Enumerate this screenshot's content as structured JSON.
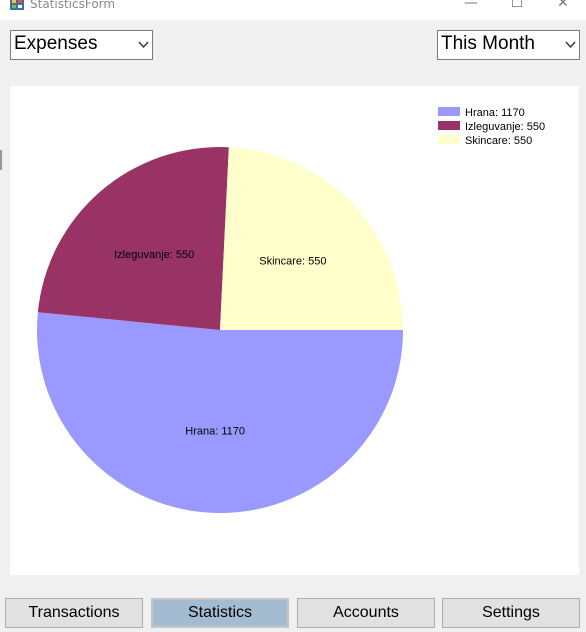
{
  "window": {
    "title": "StatisticsForm",
    "minimize_glyph": "—",
    "maximize_glyph": "☐",
    "close_glyph": "✕"
  },
  "filters": {
    "type_value": "Expenses",
    "period_value": "This Month"
  },
  "chart_data": {
    "type": "pie",
    "categories": [
      "Hrana",
      "Izleguvanje",
      "Skincare"
    ],
    "values": [
      1170,
      550,
      550
    ],
    "data_labels": [
      "Hrana: 1170",
      "Izleguvanje: 550",
      "Skincare: 550"
    ],
    "legend_entries": [
      "Hrana: 1170",
      "Izleguvanje: 550",
      "Skincare: 550"
    ],
    "colors": [
      "#9999ff",
      "#993366",
      "#ffffcc"
    ],
    "legend_position": "top-right",
    "start_angle_deg": 0,
    "direction": "clockwise"
  },
  "nav": {
    "transactions": "Transactions",
    "statistics": "Statistics",
    "accounts": "Accounts",
    "settings": "Settings"
  }
}
